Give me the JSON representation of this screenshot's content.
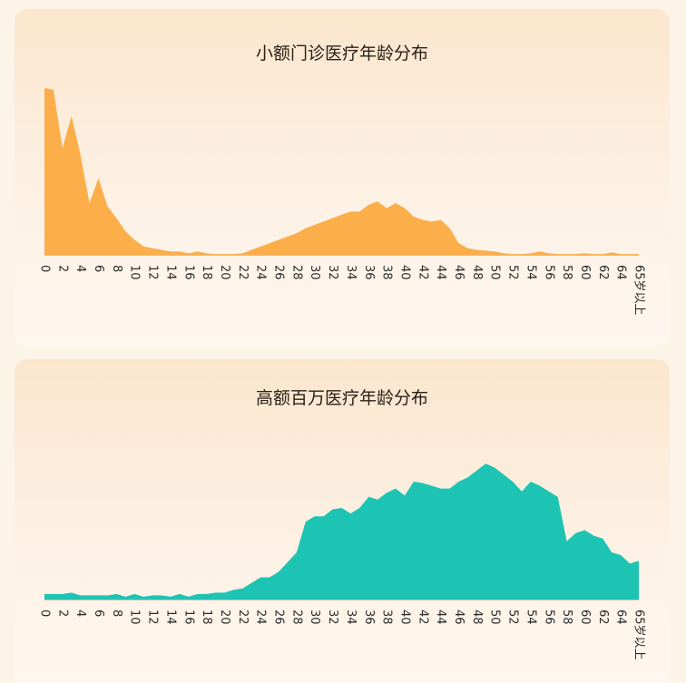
{
  "charts": [
    {
      "title": "小额门诊医疗年龄分布",
      "color": "#fbae4a",
      "chart_data": {
        "type": "area",
        "title": "小额门诊医疗年龄分布",
        "x_labels": [
          "0",
          "2",
          "4",
          "6",
          "8",
          "10",
          "12",
          "14",
          "16",
          "18",
          "20",
          "22",
          "24",
          "26",
          "28",
          "30",
          "32",
          "34",
          "36",
          "38",
          "40",
          "42",
          "44",
          "46",
          "48",
          "50",
          "52",
          "54",
          "56",
          "58",
          "60",
          "62",
          "64",
          "65岁以上"
        ],
        "values": [
          100,
          99,
          64,
          83,
          60,
          31,
          46,
          29,
          22,
          14,
          9,
          5,
          4,
          3,
          2,
          2,
          1,
          2,
          1,
          0.5,
          0.5,
          0.5,
          1,
          3,
          5,
          7,
          9,
          11,
          13,
          16,
          18,
          20,
          22,
          24,
          26,
          26,
          30,
          32,
          28,
          31,
          28,
          23,
          21,
          20,
          21,
          16,
          7,
          4,
          3,
          2.5,
          2,
          1,
          0.5,
          0.5,
          1,
          2,
          1,
          0.5,
          0.5,
          0.5,
          1,
          0.5,
          0.5,
          1.5,
          0.5,
          0.5,
          0.5
        ],
        "ylim": [
          0,
          100
        ],
        "grid": false,
        "legend": "none"
      }
    },
    {
      "title": "高额百万医疗年龄分布",
      "color": "#1ec4b3",
      "chart_data": {
        "type": "area",
        "title": "高额百万医疗年龄分布",
        "x_labels": [
          "0",
          "2",
          "4",
          "6",
          "8",
          "10",
          "12",
          "14",
          "16",
          "18",
          "20",
          "22",
          "24",
          "26",
          "28",
          "30",
          "32",
          "34",
          "36",
          "38",
          "40",
          "42",
          "44",
          "46",
          "48",
          "50",
          "52",
          "54",
          "56",
          "58",
          "60",
          "62",
          "64",
          "65岁以上"
        ],
        "values": [
          4,
          4,
          4,
          5,
          3,
          3,
          3,
          3,
          4,
          2,
          4,
          2,
          3,
          3,
          2,
          4,
          2,
          4,
          4,
          5,
          5,
          7,
          8,
          12,
          16,
          16,
          20,
          27,
          34,
          56,
          60,
          60,
          65,
          66,
          62,
          66,
          74,
          72,
          77,
          80,
          75,
          85,
          84,
          82,
          80,
          80,
          85,
          88,
          93,
          98,
          95,
          90,
          85,
          78,
          85,
          82,
          78,
          74,
          42,
          48,
          50,
          46,
          44,
          34,
          32,
          26,
          28
        ],
        "ylim": [
          0,
          100
        ],
        "grid": false,
        "legend": "none"
      }
    }
  ]
}
